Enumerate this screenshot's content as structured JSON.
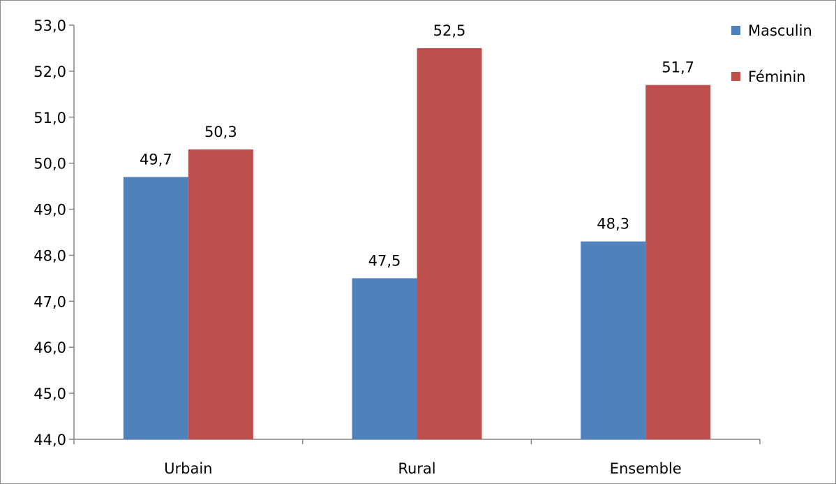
{
  "chart_data": {
    "type": "bar",
    "title": "",
    "xlabel": "",
    "ylabel": "",
    "categories": [
      "Urbain",
      "Rural",
      "Ensemble"
    ],
    "series": [
      {
        "name": "Masculin",
        "values": [
          49.7,
          47.5,
          48.3
        ],
        "labels": [
          "49,7",
          "47,5",
          "48,3"
        ],
        "color": "#4f81bd"
      },
      {
        "name": "Féminin",
        "values": [
          50.3,
          52.5,
          51.7
        ],
        "labels": [
          "50,3",
          "52,5",
          "51,7"
        ],
        "color": "#c0504d"
      }
    ],
    "ylim": [
      44,
      53
    ],
    "yticks": [
      44,
      45,
      46,
      47,
      48,
      49,
      50,
      51,
      52,
      53
    ],
    "ytick_labels": [
      "44,0",
      "45,0",
      "46,0",
      "47,0",
      "48,0",
      "49,0",
      "50,0",
      "51,0",
      "52,0",
      "53,0"
    ],
    "grid": false,
    "legend": "top-right"
  }
}
